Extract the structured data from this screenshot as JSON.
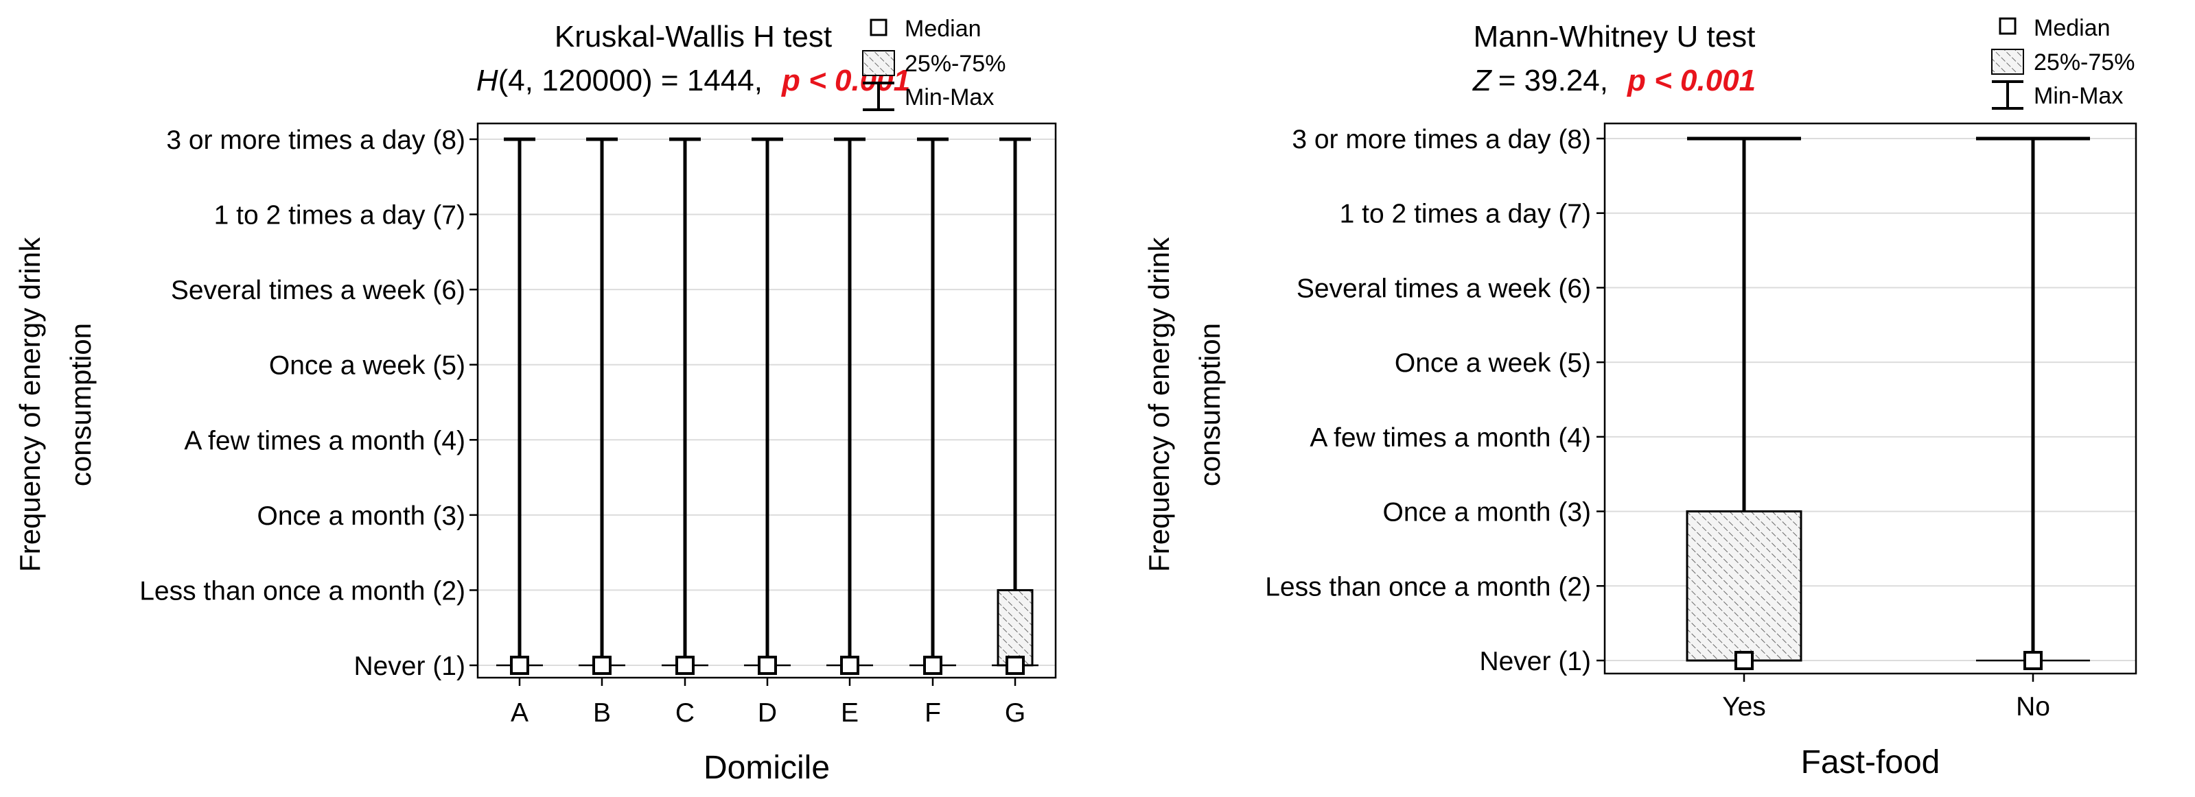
{
  "chart_data": [
    {
      "type": "box",
      "title": "Kruskal-Wallis H test",
      "stat": {
        "prefix": "H",
        "rest": "(4, 120000) = 1444,",
        "p": "p < 0.001"
      },
      "xlabel": "Domicile",
      "ylabel_lines": [
        "Frequency of energy drink",
        "consumption"
      ],
      "ylim": [
        1,
        8
      ],
      "yticks": [
        {
          "value": 8,
          "label": "3 or more times a day (8)"
        },
        {
          "value": 7,
          "label": "1 to 2 times a day (7)"
        },
        {
          "value": 6,
          "label": "Several times a week (6)"
        },
        {
          "value": 5,
          "label": "Once a week (5)"
        },
        {
          "value": 4,
          "label": "A few times a month (4)"
        },
        {
          "value": 3,
          "label": "Once a month (3)"
        },
        {
          "value": 2,
          "label": "Less than once a month (2)"
        },
        {
          "value": 1,
          "label": "Never (1)"
        }
      ],
      "categories": [
        "A",
        "B",
        "C",
        "D",
        "E",
        "F",
        "G"
      ],
      "median": [
        1,
        1,
        1,
        1,
        1,
        1,
        1
      ],
      "q1": [
        1,
        1,
        1,
        1,
        1,
        1,
        1
      ],
      "q3": [
        1,
        1,
        1,
        1,
        1,
        1,
        2
      ],
      "min": [
        1,
        1,
        1,
        1,
        1,
        1,
        1
      ],
      "max": [
        8,
        8,
        8,
        8,
        8,
        8,
        8
      ],
      "legend": {
        "median": "Median",
        "iqr": "25%-75%",
        "range": "Min-Max"
      }
    },
    {
      "type": "box",
      "title": "Mann-Whitney U test",
      "stat": {
        "prefix": "Z",
        "rest": "= 39.24,",
        "p": "p < 0.001"
      },
      "xlabel": "Fast-food",
      "ylabel_lines": [
        "Frequency of energy drink",
        "consumption"
      ],
      "ylim": [
        1,
        8
      ],
      "yticks": [
        {
          "value": 8,
          "label": "3 or more times a day (8)"
        },
        {
          "value": 7,
          "label": "1 to 2 times a day (7)"
        },
        {
          "value": 6,
          "label": "Several times a week (6)"
        },
        {
          "value": 5,
          "label": "Once a week (5)"
        },
        {
          "value": 4,
          "label": "A few times a month (4)"
        },
        {
          "value": 3,
          "label": "Once a month (3)"
        },
        {
          "value": 2,
          "label": "Less than once a month (2)"
        },
        {
          "value": 1,
          "label": "Never (1)"
        }
      ],
      "categories": [
        "Yes",
        "No"
      ],
      "median": [
        1,
        1
      ],
      "q1": [
        1,
        1
      ],
      "q3": [
        3,
        1
      ],
      "min": [
        1,
        1
      ],
      "max": [
        8,
        8
      ],
      "legend": {
        "median": "Median",
        "iqr": "25%-75%",
        "range": "Min-Max"
      }
    }
  ]
}
